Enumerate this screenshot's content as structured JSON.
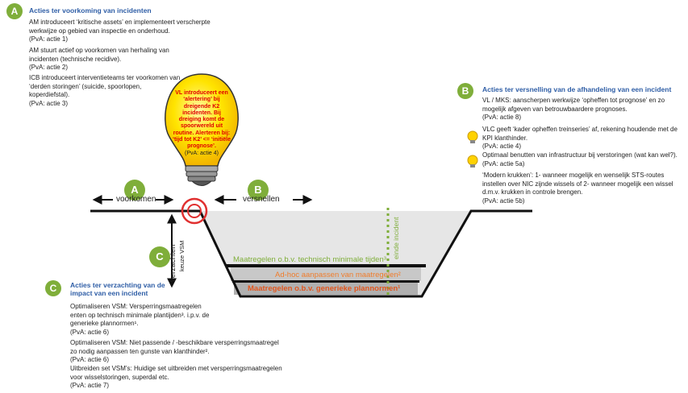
{
  "badges": {
    "a": "A",
    "b": "B",
    "c": "C"
  },
  "section_a": {
    "title": "Acties ter voorkoming van incidenten",
    "items": [
      {
        "text": "AM introduceert ‘kritische assets’ en implementeert verscherpte werkwijze op gebied van inspectie en onderhoud.",
        "ref": "(PvA: actie 1)"
      },
      {
        "text": "AM stuurt actief op voorkomen van herhaling van incidenten (technische recidive).",
        "ref": "(PvA: actie 2)"
      },
      {
        "text": "ICB introduceert interventieteams ter voorkomen van ‘derden storingen’ (suicide, spoorlopen, koperdiefstal).",
        "ref": "(PvA: actie 3)"
      }
    ]
  },
  "bulb": {
    "text": "VL introduceert een ‘alertering’ bij dreigende K2 incidenten. Bij dreiging komt de spoorwereld uit routine. Alerteren bij: ‘tijd tot K2’ <= ‘initiële prognose’.",
    "ref": "(PvA: actie 4)"
  },
  "section_b": {
    "title": "Acties ter versnelling van de afhandeling van een incident",
    "items": [
      {
        "text": "VL / MKS: aanscherpen werkwijze ‘opheffen tot prognose’ en zo mogelijk afgeven van betrouwbaardere prognoses.",
        "ref": "(PvA: actie 8)",
        "bulb": false
      },
      {
        "text": "VLC geeft ‘kader opheffen treinseries’ af, rekening houdende met de KPI klanthinder.",
        "ref": "(PvA: actie 4)",
        "bulb": true
      },
      {
        "text": "Optimaal benutten van infrastructuur bij verstoringen (wat kan wel?).",
        "ref": "(PvA: actie 5a)",
        "bulb": true
      },
      {
        "text": "‘Modern krukken’: 1- wanneer mogelijk en wenselijk STS-routes instellen over NIC zijnde wissels of 2- wanneer mogelijk een wissel d.m.v. krukken in controle brengen.",
        "ref": "(PvA: actie 5b)",
        "bulb": false
      }
    ]
  },
  "section_c": {
    "title": "Acties ter verzachting van de impact van een incident",
    "items": [
      {
        "text": "Optimaliseren VSM: Versperringsmaatregelen enten op technisch minimale plantijden³. i.p.v. de generieke plannormen¹.",
        "ref": "(PvA: actie 6)"
      },
      {
        "text": "Optimaliseren VSM: Niet passende / -beschikbare versperringsmaatregel zo nodig aanpassen ten gunste van klanthinder².",
        "ref": "(PvA: actie 6)"
      },
      {
        "text": "Uitbreiden set VSM’s: Huidige set uitbreiden met versperringsmaatregelen voor wisselstoringen, superdal etc.",
        "ref": "(PvA: actie 7)"
      }
    ]
  },
  "diagram": {
    "voorkomen": "voorkomen",
    "versnellen": "versnellen",
    "verzachten": "verzachten",
    "keuze_vsm": "keuze VSM",
    "einde_incident": "einde incident",
    "bands": [
      {
        "label": "Maatregelen o.b.v. technisch minimale tijden³",
        "color": "#7fae3a"
      },
      {
        "label": "Ad-hoc aanpassen van maatregelen²",
        "color": "#f07c2b"
      },
      {
        "label": "Maatregelen o.b.v. generieke plannormen¹",
        "color": "#e2561e"
      }
    ]
  }
}
